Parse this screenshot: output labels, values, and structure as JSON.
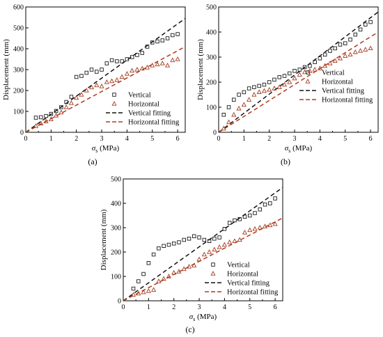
{
  "colors": {
    "vertical": "#1a1a1a",
    "horizontal": "#a33b1f",
    "fit_vertical": "#111111",
    "fit_horizontal": "#b23a1e"
  },
  "chart_data": [
    {
      "type": "scatter",
      "caption": "(a)",
      "xlabel_main": "σ",
      "xlabel_sub": "s",
      "xlabel_unit": " (MPa)",
      "ylabel": "Displacement (mm)",
      "xlim": [
        0,
        6.3
      ],
      "ylim": [
        0,
        600
      ],
      "xticks": [
        "0",
        "1",
        "2",
        "3",
        "4",
        "5",
        "6"
      ],
      "yticks": [
        "0",
        "100",
        "200",
        "300",
        "400",
        "500",
        "600"
      ],
      "legend_position": "lower-right",
      "series": [
        {
          "name": "Vertical",
          "kind": "marker-square",
          "color": "#1a1a1a",
          "x": [
            0.4,
            0.6,
            0.8,
            1.0,
            1.2,
            1.4,
            1.6,
            1.8,
            2.0,
            2.2,
            2.4,
            2.6,
            2.8,
            3.0,
            3.2,
            3.4,
            3.6,
            3.8,
            4.0,
            4.2,
            4.4,
            4.6,
            4.8,
            5.0,
            5.2,
            5.4,
            5.6,
            5.8,
            6.0
          ],
          "y": [
            70,
            72,
            78,
            88,
            102,
            120,
            145,
            170,
            265,
            270,
            285,
            300,
            290,
            300,
            330,
            345,
            340,
            340,
            350,
            360,
            370,
            380,
            410,
            430,
            435,
            440,
            450,
            465,
            470
          ]
        },
        {
          "name": "Horizontal",
          "kind": "marker-triangle",
          "color": "#a33b1f",
          "x": [
            0.4,
            0.6,
            0.8,
            1.0,
            1.2,
            1.4,
            1.6,
            1.8,
            2.0,
            2.2,
            2.4,
            2.6,
            2.8,
            3.0,
            3.2,
            3.4,
            3.6,
            3.8,
            4.0,
            4.2,
            4.4,
            4.6,
            4.8,
            5.0,
            5.2,
            5.4,
            5.6,
            5.8,
            6.0
          ],
          "y": [
            30,
            42,
            52,
            62,
            80,
            95,
            120,
            140,
            165,
            180,
            200,
            215,
            225,
            220,
            240,
            245,
            250,
            265,
            280,
            295,
            300,
            305,
            310,
            320,
            325,
            330,
            320,
            345,
            350
          ]
        },
        {
          "name": "Vertical fitting",
          "kind": "line-dash",
          "color": "#111111",
          "x": [
            0,
            6.3
          ],
          "y": [
            0,
            545
          ]
        },
        {
          "name": "Horizontal fitting",
          "kind": "line-dash",
          "color": "#b23a1e",
          "x": [
            0,
            6.3
          ],
          "y": [
            0,
            410
          ]
        }
      ]
    },
    {
      "type": "scatter",
      "caption": "(b)",
      "xlabel_main": "σ",
      "xlabel_sub": "s",
      "xlabel_unit": " (MPa)",
      "ylabel": "Displacement (mm)",
      "xlim": [
        0,
        6.3
      ],
      "ylim": [
        0,
        500
      ],
      "xticks": [
        "0",
        "1",
        "2",
        "3",
        "4",
        "5",
        "6"
      ],
      "yticks": [
        "0",
        "100",
        "200",
        "300",
        "400",
        "500"
      ],
      "legend_position": "lower-right",
      "series": [
        {
          "name": "Vertical",
          "kind": "marker-square",
          "color": "#1a1a1a",
          "x": [
            0.2,
            0.4,
            0.6,
            0.8,
            1.0,
            1.2,
            1.4,
            1.6,
            1.8,
            2.0,
            2.2,
            2.4,
            2.6,
            2.8,
            3.0,
            3.2,
            3.4,
            3.6,
            3.8,
            4.0,
            4.2,
            4.4,
            4.6,
            4.8,
            5.0,
            5.2,
            5.4,
            5.6,
            5.8,
            6.0
          ],
          "y": [
            70,
            100,
            130,
            150,
            160,
            175,
            180,
            185,
            190,
            200,
            210,
            220,
            225,
            235,
            245,
            250,
            260,
            265,
            280,
            295,
            310,
            325,
            335,
            350,
            355,
            370,
            390,
            410,
            430,
            440
          ]
        },
        {
          "name": "Horizontal",
          "kind": "marker-triangle",
          "color": "#a33b1f",
          "x": [
            0.2,
            0.4,
            0.6,
            0.8,
            1.0,
            1.2,
            1.4,
            1.6,
            1.8,
            2.0,
            2.2,
            2.4,
            2.6,
            2.8,
            3.0,
            3.2,
            3.4,
            3.6,
            3.8,
            4.0,
            4.2,
            4.4,
            4.6,
            4.8,
            5.0,
            5.2,
            5.4,
            5.6,
            5.8,
            6.0
          ],
          "y": [
            15,
            40,
            70,
            95,
            110,
            130,
            150,
            160,
            165,
            170,
            175,
            180,
            190,
            200,
            215,
            230,
            240,
            245,
            250,
            255,
            265,
            275,
            285,
            295,
            305,
            310,
            320,
            325,
            330,
            335
          ]
        },
        {
          "name": "Vertical fitting",
          "kind": "line-dash",
          "color": "#111111",
          "x": [
            0,
            6.3
          ],
          "y": [
            0,
            480
          ]
        },
        {
          "name": "Horizontal fitting",
          "kind": "line-dash",
          "color": "#b23a1e",
          "x": [
            0,
            6.3
          ],
          "y": [
            0,
            400
          ]
        }
      ]
    },
    {
      "type": "scatter",
      "caption": "(c)",
      "xlabel_main": "σ",
      "xlabel_sub": "s",
      "xlabel_unit": " (MPa)",
      "ylabel": "Displacement (mm)",
      "xlim": [
        0,
        6.3
      ],
      "ylim": [
        0,
        500
      ],
      "xticks": [
        "0",
        "1",
        "2",
        "3",
        "4",
        "5",
        "6"
      ],
      "yticks": [
        "0",
        "100",
        "200",
        "300",
        "400",
        "500"
      ],
      "legend_position": "lower-right",
      "series": [
        {
          "name": "Vertical",
          "kind": "marker-square",
          "color": "#1a1a1a",
          "x": [
            0.4,
            0.6,
            0.8,
            1.0,
            1.2,
            1.4,
            1.6,
            1.8,
            2.0,
            2.2,
            2.4,
            2.6,
            2.8,
            3.0,
            3.2,
            3.4,
            3.6,
            3.8,
            4.0,
            4.2,
            4.4,
            4.6,
            4.8,
            5.0,
            5.2,
            5.4,
            5.6,
            5.8,
            6.0
          ],
          "y": [
            50,
            80,
            110,
            155,
            190,
            215,
            225,
            230,
            235,
            240,
            250,
            255,
            265,
            260,
            250,
            245,
            255,
            260,
            295,
            320,
            330,
            335,
            345,
            350,
            360,
            375,
            395,
            400,
            420
          ]
        },
        {
          "name": "Horizontal",
          "kind": "marker-triangle",
          "color": "#a33b1f",
          "x": [
            0.4,
            0.6,
            0.8,
            1.0,
            1.2,
            1.4,
            1.6,
            1.8,
            2.0,
            2.2,
            2.4,
            2.6,
            2.8,
            3.0,
            3.2,
            3.4,
            3.6,
            3.8,
            4.0,
            4.2,
            4.4,
            4.6,
            4.8,
            5.0,
            5.2,
            5.4,
            5.6,
            5.8,
            6.0
          ],
          "y": [
            25,
            30,
            35,
            40,
            45,
            80,
            90,
            100,
            115,
            120,
            130,
            140,
            145,
            170,
            190,
            200,
            210,
            220,
            230,
            240,
            245,
            250,
            280,
            290,
            295,
            300,
            305,
            310,
            315
          ]
        },
        {
          "name": "Vertical fitting",
          "kind": "line-dash",
          "color": "#111111",
          "x": [
            0,
            6.3
          ],
          "y": [
            0,
            465
          ]
        },
        {
          "name": "Horizontal fitting",
          "kind": "line-dash",
          "color": "#b23a1e",
          "x": [
            0,
            6.3
          ],
          "y": [
            0,
            340
          ]
        }
      ]
    }
  ]
}
